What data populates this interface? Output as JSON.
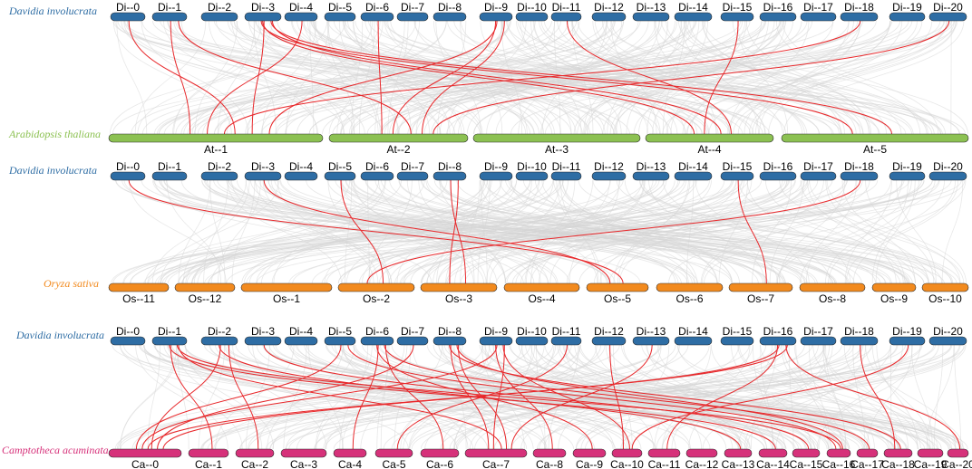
{
  "colors": {
    "davidia": "#2e6da4",
    "arabidopsis": "#8cc152",
    "oryza": "#f28a1e",
    "camptotheca": "#d6317a",
    "link_background": "#d6d6d6",
    "link_highlight": "#e8282b"
  },
  "panels": [
    {
      "top_species": "Davidia involucrata",
      "top_chromosomes": [
        "Di--0",
        "Di--1",
        "Di--2",
        "Di--3",
        "Di--4",
        "Di--5",
        "Di--6",
        "Di--7",
        "Di--8",
        "Di--9",
        "Di--10",
        "Di--11",
        "Di--12",
        "Di--13",
        "Di--14",
        "Di--15",
        "Di--16",
        "Di--17",
        "Di--18",
        "Di--19",
        "Di--20"
      ],
      "bottom_species": "Arabidopsis thaliana",
      "bottom_chromosomes": [
        "At--1",
        "At--2",
        "At--3",
        "At--4",
        "At--5"
      ],
      "highlighted_links": [
        {
          "from": "Di--0",
          "to": "At--1"
        },
        {
          "from": "Di--1",
          "to": "At--1"
        },
        {
          "from": "Di--1",
          "to": "At--2"
        },
        {
          "from": "Di--3",
          "to": "At--1"
        },
        {
          "from": "Di--3",
          "to": "At--4"
        },
        {
          "from": "Di--3",
          "to": "At--4"
        },
        {
          "from": "Di--3",
          "to": "At--5"
        },
        {
          "from": "Di--3",
          "to": "At--5"
        },
        {
          "from": "Di--4",
          "to": "At--1"
        },
        {
          "from": "Di--6",
          "to": "At--2"
        },
        {
          "from": "Di--9",
          "to": "At--1"
        },
        {
          "from": "Di--9",
          "to": "At--2"
        },
        {
          "from": "Di--9",
          "to": "At--2"
        },
        {
          "from": "Di--11",
          "to": "At--4"
        },
        {
          "from": "Di--15",
          "to": "At--4"
        },
        {
          "from": "Di--18",
          "to": "At--1"
        },
        {
          "from": "Di--20",
          "to": "At--2"
        }
      ]
    },
    {
      "top_species": "Davidia involucrata",
      "top_chromosomes": [
        "Di--0",
        "Di--1",
        "Di--2",
        "Di--3",
        "Di--4",
        "Di--5",
        "Di--6",
        "Di--7",
        "Di--8",
        "Di--9",
        "Di--10",
        "Di--11",
        "Di--12",
        "Di--13",
        "Di--14",
        "Di--15",
        "Di--16",
        "Di--17",
        "Di--18",
        "Di--19",
        "Di--20"
      ],
      "bottom_species": "Oryza sativa",
      "bottom_chromosomes": [
        "Os--11",
        "Os--12",
        "Os--1",
        "Os--2",
        "Os--3",
        "Os--4",
        "Os--5",
        "Os--6",
        "Os--7",
        "Os--8",
        "Os--9",
        "Os--10"
      ],
      "highlighted_links": [
        {
          "from": "Di--0",
          "to": "Os--5"
        },
        {
          "from": "Di--3",
          "to": "Os--5"
        },
        {
          "from": "Di--5",
          "to": "Os--2"
        },
        {
          "from": "Di--8",
          "to": "Os--3"
        },
        {
          "from": "Di--8",
          "to": "Os--3"
        },
        {
          "from": "Di--15",
          "to": "Os--7"
        },
        {
          "from": "Di--18",
          "to": "Os--2"
        }
      ]
    },
    {
      "top_species": "Davidia involucrata",
      "top_chromosomes": [
        "Di--0",
        "Di--1",
        "Di--2",
        "Di--3",
        "Di--4",
        "Di--5",
        "Di--6",
        "Di--7",
        "Di--8",
        "Di--9",
        "Di--10",
        "Di--11",
        "Di--12",
        "Di--13",
        "Di--14",
        "Di--15",
        "Di--16",
        "Di--17",
        "Di--18",
        "Di--19",
        "Di--20"
      ],
      "bottom_species": "Camptotheca acuminata",
      "bottom_chromosomes": [
        "Ca--0",
        "Ca--1",
        "Ca--2",
        "Ca--3",
        "Ca-4",
        "Ca-5",
        "Ca--6",
        "Ca--7",
        "Ca--8",
        "Ca--9",
        "Ca--10",
        "Ca--11",
        "Ca--12",
        "Ca--13",
        "Ca--14",
        "Ca--15",
        "Ca--16",
        "Ca--17",
        "Ca--18",
        "Ca--19",
        "Ca--20"
      ],
      "highlighted_links": [
        {
          "from": "Di--1",
          "to": "Ca--1"
        },
        {
          "from": "Di--1",
          "to": "Ca--7"
        },
        {
          "from": "Di--1",
          "to": "Ca--14"
        },
        {
          "from": "Di--1",
          "to": "Ca--16"
        },
        {
          "from": "Di--2",
          "to": "Ca--0"
        },
        {
          "from": "Di--2",
          "to": "Ca--2"
        },
        {
          "from": "Di--2",
          "to": "Ca--13"
        },
        {
          "from": "Di--3",
          "to": "Ca--15"
        },
        {
          "from": "Di--5",
          "to": "Ca--0"
        },
        {
          "from": "Di--5",
          "to": "Ca--16"
        },
        {
          "from": "Di--6",
          "to": "Ca-4"
        },
        {
          "from": "Di--6",
          "to": "Ca--6"
        },
        {
          "from": "Di--6",
          "to": "Ca--9"
        },
        {
          "from": "Di--6",
          "to": "Ca--17"
        },
        {
          "from": "Di--7",
          "to": "Ca--0"
        },
        {
          "from": "Di--8",
          "to": "Ca--7"
        },
        {
          "from": "Di--8",
          "to": "Ca--7"
        },
        {
          "from": "Di--8",
          "to": "Ca--18"
        },
        {
          "from": "Di--8",
          "to": "Ca--16"
        },
        {
          "from": "Di--9",
          "to": "Ca--0"
        },
        {
          "from": "Di--9",
          "to": "Ca--7"
        },
        {
          "from": "Di--9",
          "to": "Ca--8"
        },
        {
          "from": "Di--9",
          "to": "Ca--10"
        },
        {
          "from": "Di--11",
          "to": "Ca-5"
        },
        {
          "from": "Di--12",
          "to": "Ca--10"
        },
        {
          "from": "Di--13",
          "to": "Ca--7"
        },
        {
          "from": "Di--16",
          "to": "Ca--0"
        },
        {
          "from": "Di--16",
          "to": "Ca--0"
        },
        {
          "from": "Di--16",
          "to": "Ca--11"
        },
        {
          "from": "Di--16",
          "to": "Ca--20"
        },
        {
          "from": "Di--18",
          "to": "Ca--18"
        },
        {
          "from": "Di--19",
          "to": "Ca--10"
        }
      ]
    }
  ]
}
